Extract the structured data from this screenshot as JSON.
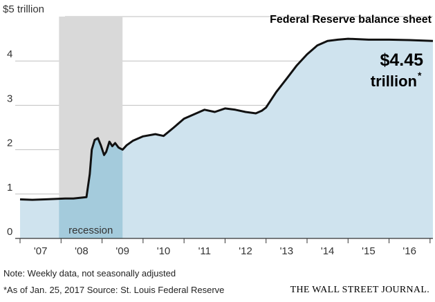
{
  "chart_data": {
    "type": "area",
    "title": "Federal Reserve balance sheet",
    "y_unit_label": "$5 trillion",
    "ylim": [
      0,
      5
    ],
    "y_ticks": [
      "0",
      "1",
      "2",
      "3",
      "4"
    ],
    "x_tick_labels": [
      "'07",
      "'08",
      "'09",
      "'10",
      "'11",
      "'12",
      "'13",
      "'14",
      "'15",
      "'16"
    ],
    "xlim": [
      2007.0,
      2017.07
    ],
    "recession": {
      "label": "recession",
      "start": 2007.95,
      "end": 2009.5
    },
    "latest_value_label": "$4.45",
    "latest_unit_label": "trillion",
    "latest_asterisk": "*",
    "series": [
      {
        "x": [
          2007.0,
          2007.3,
          2007.6,
          2007.85,
          2008.1,
          2008.3,
          2008.62,
          2008.7,
          2008.75,
          2008.82,
          2008.9,
          2008.97,
          2009.05,
          2009.1,
          2009.18,
          2009.25,
          2009.32,
          2009.4,
          2009.5,
          2009.6,
          2009.75,
          2010.0,
          2010.3,
          2010.5,
          2010.75,
          2011.0,
          2011.5,
          2011.75,
          2012.0,
          2012.25,
          2012.5,
          2012.75,
          2012.9,
          2013.0,
          2013.25,
          2013.5,
          2013.75,
          2014.0,
          2014.25,
          2014.5,
          2014.75,
          2015.0,
          2015.5,
          2016.0,
          2016.5,
          2017.07
        ],
        "values": [
          0.88,
          0.87,
          0.88,
          0.89,
          0.9,
          0.9,
          0.93,
          1.45,
          2.0,
          2.22,
          2.26,
          2.1,
          1.88,
          1.95,
          2.18,
          2.08,
          2.15,
          2.05,
          2.0,
          2.1,
          2.2,
          2.3,
          2.35,
          2.31,
          2.5,
          2.7,
          2.9,
          2.85,
          2.93,
          2.9,
          2.85,
          2.82,
          2.88,
          2.95,
          3.3,
          3.6,
          3.9,
          4.15,
          4.35,
          4.45,
          4.48,
          4.5,
          4.48,
          4.48,
          4.47,
          4.45
        ]
      }
    ],
    "grid": true,
    "colors": {
      "fill": "#cfe3ee",
      "recession_fill": "#d9d9d9",
      "recession_area": "#a4cbdc",
      "line": "#111111",
      "grid": "#bfbfbf"
    }
  },
  "footer": {
    "note": "Note: Weekly data, not seasonally adjusted",
    "source": "*As of Jan. 25, 2017  Source: St. Louis Federal Reserve",
    "publisher": "THE WALL STREET JOURNAL."
  }
}
